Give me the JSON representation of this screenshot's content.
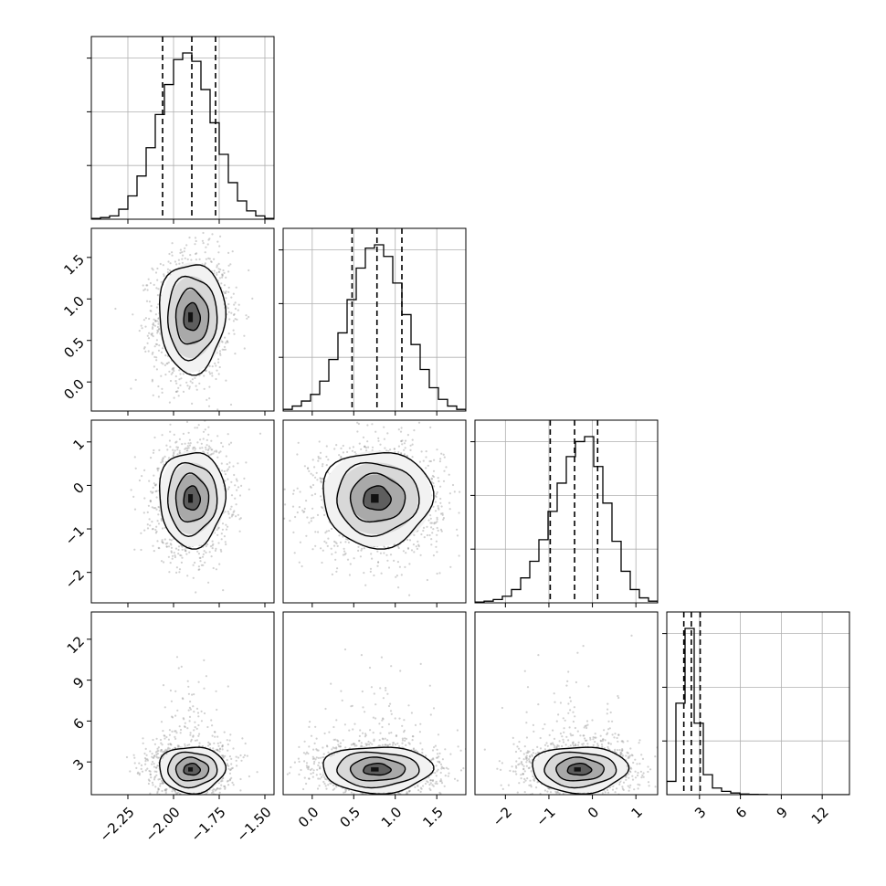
{
  "figure": {
    "type": "corner",
    "panel_size": 200,
    "gap": 10,
    "origin_left": 100,
    "origin_top": 40,
    "grid": true,
    "grid_color": "#b0b0b0",
    "line_color": "#000000"
  },
  "chart_data": {
    "type": "corner",
    "grid": true,
    "parameters": [
      {
        "id": "p1",
        "xlim": [
          -2.45,
          -1.45
        ],
        "ticks": [
          -2.25,
          -2.0,
          -1.75,
          -1.5
        ],
        "tick_labels": [
          "−2.25",
          "−2.00",
          "−1.75",
          "−1.50"
        ]
      },
      {
        "id": "p2",
        "xlim": [
          -0.35,
          1.85
        ],
        "ticks": [
          0.0,
          0.5,
          1.0,
          1.5
        ],
        "tick_labels": [
          "0.0",
          "0.5",
          "1.0",
          "1.5"
        ]
      },
      {
        "id": "p3",
        "xlim": [
          -2.7,
          1.5
        ],
        "ticks": [
          -2,
          -1,
          0,
          1
        ],
        "tick_labels": [
          "−2",
          "−1",
          "0",
          "1"
        ]
      },
      {
        "id": "p4",
        "xlim": [
          0.6,
          14.0
        ],
        "ticks": [
          3,
          6,
          9,
          12
        ],
        "tick_labels": [
          "3",
          "6",
          "9",
          "12"
        ]
      }
    ],
    "histograms": [
      {
        "param": 0,
        "bin_edges": [
          -2.45,
          -2.4,
          -2.35,
          -2.3,
          -2.25,
          -2.2,
          -2.15,
          -2.1,
          -2.05,
          -2.0,
          -1.95,
          -1.9,
          -1.85,
          -1.8,
          -1.75,
          -1.7,
          -1.65,
          -1.6,
          -1.55,
          -1.5,
          -1.45
        ],
        "counts": [
          0.005,
          0.01,
          0.02,
          0.06,
          0.14,
          0.26,
          0.43,
          0.63,
          0.81,
          0.96,
          1.0,
          0.95,
          0.78,
          0.58,
          0.39,
          0.22,
          0.11,
          0.05,
          0.02,
          0.005
        ],
        "quantiles": [
          -2.06,
          -1.9,
          -1.77
        ],
        "y_tick_fractions": [
          0.3,
          0.6,
          0.9
        ]
      },
      {
        "param": 1,
        "bin_edges": [
          -0.35,
          -0.24,
          -0.13,
          -0.02,
          0.09,
          0.2,
          0.31,
          0.42,
          0.53,
          0.64,
          0.75,
          0.86,
          0.97,
          1.08,
          1.19,
          1.3,
          1.41,
          1.52,
          1.63,
          1.74,
          1.85
        ],
        "counts": [
          0.01,
          0.03,
          0.06,
          0.1,
          0.18,
          0.31,
          0.47,
          0.67,
          0.86,
          0.98,
          1.0,
          0.93,
          0.77,
          0.58,
          0.4,
          0.25,
          0.14,
          0.07,
          0.03,
          0.01
        ],
        "quantiles": [
          0.48,
          0.78,
          1.08
        ],
        "y_tick_fractions": [
          0.3,
          0.6,
          0.9
        ]
      },
      {
        "param": 2,
        "bin_edges": [
          -2.7,
          -2.49,
          -2.28,
          -2.07,
          -1.86,
          -1.65,
          -1.44,
          -1.23,
          -1.02,
          -0.81,
          -0.6,
          -0.39,
          -0.18,
          0.03,
          0.24,
          0.45,
          0.66,
          0.87,
          1.08,
          1.29,
          1.5
        ],
        "counts": [
          0.005,
          0.01,
          0.02,
          0.04,
          0.08,
          0.15,
          0.25,
          0.38,
          0.55,
          0.72,
          0.88,
          0.97,
          1.0,
          0.82,
          0.6,
          0.37,
          0.19,
          0.08,
          0.03,
          0.01
        ],
        "quantiles": [
          -0.97,
          -0.41,
          0.12
        ],
        "y_tick_fractions": [
          0.3,
          0.6,
          0.9
        ]
      },
      {
        "param": 3,
        "bin_edges": [
          0.6,
          1.27,
          1.94,
          2.61,
          3.28,
          3.95,
          4.62,
          5.29,
          5.96,
          6.63,
          7.3,
          7.97,
          8.64,
          9.31,
          9.98,
          10.65,
          11.32,
          11.99,
          12.66,
          13.33,
          14.0
        ],
        "counts": [
          0.08,
          0.55,
          1.0,
          0.43,
          0.12,
          0.04,
          0.02,
          0.01,
          0.004,
          0.002,
          0.001,
          0.0,
          0.0,
          0.0,
          0.0,
          0.0,
          0.0,
          0.0,
          0.0,
          0.0
        ],
        "quantiles": [
          1.85,
          2.4,
          3.05
        ],
        "y_tick_fractions": [
          0.3,
          0.6,
          0.9
        ]
      }
    ],
    "joints": [
      {
        "row": 1,
        "col": 0,
        "center": [
          -1.9,
          0.78
        ],
        "spread": [
          0.09,
          0.33
        ],
        "rho": 0.05,
        "scatter_points": 1600
      },
      {
        "row": 2,
        "col": 0,
        "center": [
          -1.9,
          -0.3
        ],
        "spread": [
          0.09,
          0.55
        ],
        "rho": 0.05,
        "scatter_points": 1600
      },
      {
        "row": 2,
        "col": 1,
        "center": [
          0.78,
          -0.3
        ],
        "spread": [
          0.33,
          0.55
        ],
        "rho": 0.0,
        "scatter_points": 1600
      },
      {
        "row": 3,
        "col": 0,
        "center": [
          -1.9,
          2.45
        ],
        "spread": [
          0.09,
          0.85
        ],
        "rho": 0.0,
        "scatter_points": 1600
      },
      {
        "row": 3,
        "col": 1,
        "center": [
          0.78,
          2.45
        ],
        "spread": [
          0.33,
          0.85
        ],
        "rho": 0.0,
        "scatter_points": 1600
      },
      {
        "row": 3,
        "col": 2,
        "center": [
          -0.3,
          2.45
        ],
        "spread": [
          0.55,
          0.85
        ],
        "rho": 0.0,
        "scatter_points": 1600
      }
    ],
    "contour_levels_sigma": [
      0.5,
      1.0,
      1.5,
      2.0
    ]
  }
}
